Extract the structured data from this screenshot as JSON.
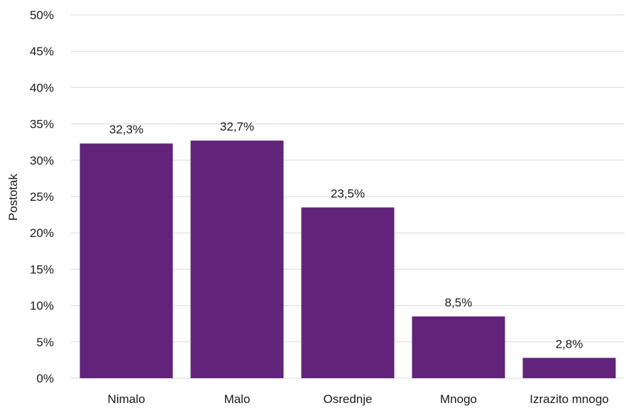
{
  "chart_data": {
    "type": "bar",
    "title": "",
    "xlabel": "",
    "ylabel": "Postotak",
    "categories": [
      "Nimalo",
      "Malo",
      "Osrednje",
      "Mnogo",
      "Izrazito mnogo"
    ],
    "values": [
      32.3,
      32.7,
      23.5,
      8.5,
      2.8
    ],
    "value_labels": [
      "32,3%",
      "32,7%",
      "23,5%",
      "8,5%",
      "2,8%"
    ],
    "y_ticks": [
      0,
      5,
      10,
      15,
      20,
      25,
      30,
      35,
      40,
      45,
      50
    ],
    "y_tick_labels": [
      "0%",
      "5%",
      "10%",
      "15%",
      "20%",
      "25%",
      "30%",
      "35%",
      "40%",
      "45%",
      "50%"
    ],
    "ylim": [
      0,
      50
    ],
    "grid": true,
    "legend": "none",
    "bar_color": "#62237a",
    "grid_color": "#d9d9d9"
  }
}
